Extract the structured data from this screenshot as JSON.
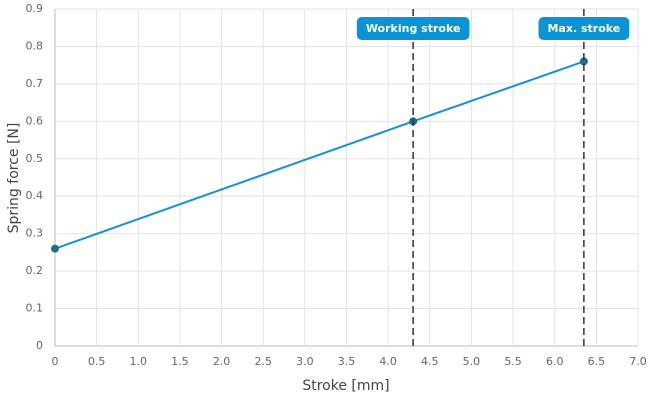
{
  "chart_data": {
    "type": "line",
    "x": [
      0,
      4.3,
      6.35
    ],
    "values": [
      0.26,
      0.6,
      0.76
    ],
    "color": "#1592d2",
    "x_label": "Stroke [mm]",
    "y_label": "Spring force [N]",
    "xlim": [
      0,
      7
    ],
    "ylim": [
      0,
      0.9
    ],
    "xticks": [
      0,
      0.5,
      {
        "value": 1,
        "label": "1.0"
      },
      1.5,
      {
        "value": 2,
        "label": "2.0"
      },
      2.5,
      {
        "value": 3,
        "label": "3.0"
      },
      3.5,
      {
        "value": 4,
        "label": "4.0"
      },
      4.5,
      {
        "value": 5,
        "label": "5.0"
      },
      5.5,
      {
        "value": 6,
        "label": "6.0"
      },
      6.5,
      {
        "value": 7,
        "label": "7.0"
      }
    ],
    "yticks": [
      0,
      0.1,
      0.2,
      0.3,
      0.4,
      0.5,
      0.6,
      0.7,
      0.8,
      0.9
    ],
    "grid": true,
    "annotations": [
      {
        "x": 4.3,
        "label": "Working stroke"
      },
      {
        "x": 6.35,
        "label": "Max. stroke"
      }
    ]
  }
}
